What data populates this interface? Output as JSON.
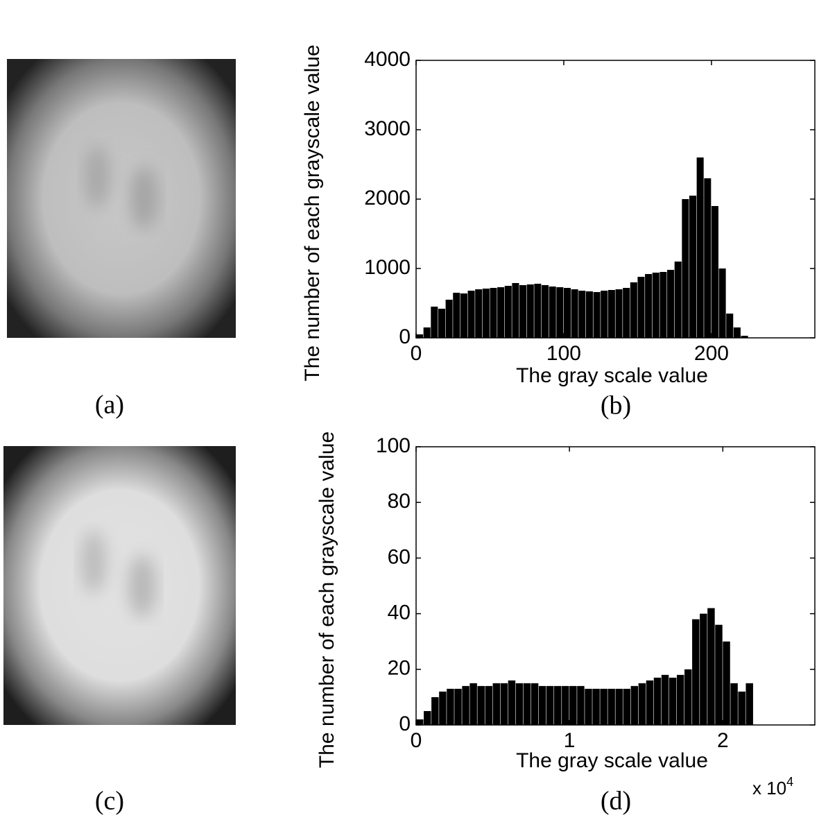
{
  "images": [
    {
      "label": "(a)"
    },
    {
      "label": "(c)"
    }
  ],
  "chart_data": [
    {
      "type": "histogram",
      "panel_label": "(b)",
      "xlabel": "The gray scale value",
      "ylabel": "The number of each grayscale value",
      "bins": [
        0,
        5,
        10,
        15,
        20,
        25,
        30,
        35,
        40,
        45,
        50,
        55,
        60,
        65,
        70,
        75,
        80,
        85,
        90,
        95,
        100,
        105,
        110,
        115,
        120,
        125,
        130,
        135,
        140,
        145,
        150,
        155,
        160,
        165,
        170,
        175,
        180,
        185,
        190,
        195,
        200,
        205,
        210,
        215,
        220,
        225
      ],
      "values": [
        50,
        150,
        450,
        420,
        550,
        650,
        640,
        680,
        700,
        710,
        720,
        730,
        750,
        790,
        760,
        770,
        780,
        760,
        740,
        730,
        720,
        700,
        680,
        670,
        660,
        680,
        690,
        700,
        720,
        800,
        880,
        920,
        940,
        950,
        980,
        1100,
        2000,
        2050,
        2600,
        2300,
        1900,
        1000,
        350,
        150,
        30
      ],
      "color": "#000000",
      "xlim": [
        0,
        270
      ],
      "xticks": [
        0,
        100,
        200
      ],
      "ylim": [
        0,
        4000
      ],
      "yticks": [
        0,
        1000,
        2000,
        3000,
        4000
      ]
    },
    {
      "type": "histogram",
      "panel_label": "(d)",
      "xlabel": "The gray scale value",
      "ylabel": "The number of each grayscale value",
      "x_multiplier": "x 10",
      "x_multiplier_exp": "4",
      "bins": [
        0,
        0.05,
        0.1,
        0.15,
        0.2,
        0.25,
        0.3,
        0.35,
        0.4,
        0.45,
        0.5,
        0.55,
        0.6,
        0.65,
        0.7,
        0.75,
        0.8,
        0.85,
        0.9,
        0.95,
        1,
        1.05,
        1.1,
        1.15,
        1.2,
        1.25,
        1.3,
        1.35,
        1.4,
        1.45,
        1.5,
        1.55,
        1.6,
        1.65,
        1.7,
        1.75,
        1.8,
        1.85,
        1.9,
        1.95,
        2,
        2.05,
        2.1,
        2.15,
        2.2
      ],
      "values": [
        2,
        5,
        10,
        12,
        13,
        13,
        14,
        15,
        14,
        14,
        15,
        15,
        16,
        15,
        15,
        15,
        14,
        14,
        14,
        14,
        14,
        14,
        13,
        13,
        13,
        13,
        13,
        13,
        14,
        15,
        16,
        17,
        18,
        17,
        18,
        20,
        38,
        40,
        42,
        36,
        30,
        15,
        12,
        15
      ],
      "color": "#000000",
      "xlim": [
        0,
        2.6
      ],
      "xticks": [
        0,
        1,
        2
      ],
      "ylim": [
        0,
        100
      ],
      "yticks": [
        0,
        20,
        40,
        60,
        80,
        100
      ]
    }
  ]
}
